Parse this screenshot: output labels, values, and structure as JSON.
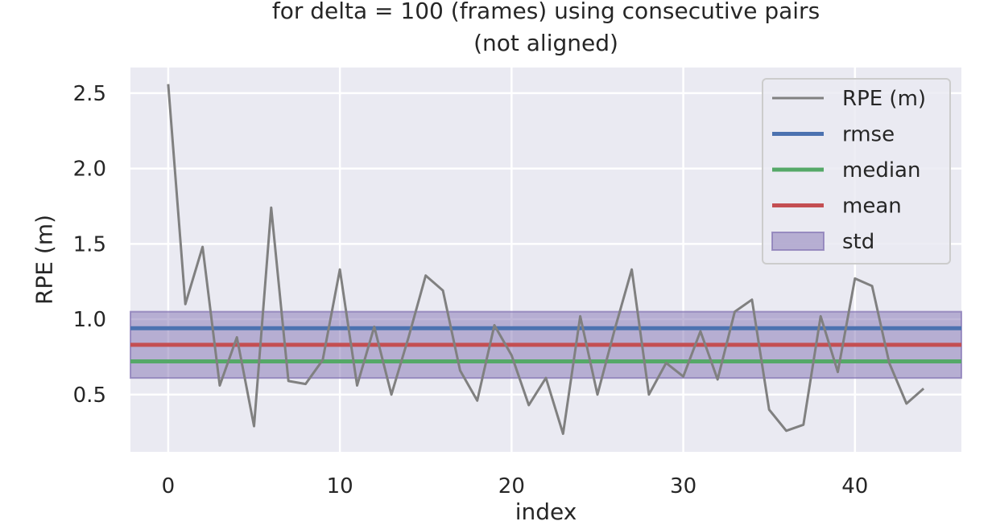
{
  "chart_data": {
    "type": "line",
    "title_lines": [
      "for delta = 100 (frames) using consecutive pairs",
      "(not aligned)"
    ],
    "xlabel": "index",
    "ylabel": "RPE (m)",
    "xlim": [
      -2.2,
      46.2
    ],
    "ylim": [
      0.12,
      2.67
    ],
    "xticks": [
      0,
      10,
      20,
      30,
      40
    ],
    "yticks": [
      0.5,
      1.0,
      1.5,
      2.0,
      2.5
    ],
    "ytick_labels": [
      "0.5",
      "1.0",
      "1.5",
      "2.0",
      "2.5"
    ],
    "grid": true,
    "legend_position": "top-right",
    "series": [
      {
        "name": "RPE (m)",
        "color": "#808080",
        "x": [
          0,
          1,
          2,
          3,
          4,
          5,
          6,
          7,
          8,
          9,
          10,
          11,
          12,
          13,
          14,
          15,
          16,
          17,
          18,
          19,
          20,
          21,
          22,
          23,
          24,
          25,
          26,
          27,
          28,
          29,
          30,
          31,
          32,
          33,
          34,
          35,
          36,
          37,
          38,
          39,
          40,
          41,
          42,
          43,
          44
        ],
        "values": [
          2.56,
          1.1,
          1.48,
          0.56,
          0.88,
          0.29,
          1.74,
          0.59,
          0.57,
          0.73,
          1.33,
          0.56,
          0.95,
          0.5,
          0.88,
          1.29,
          1.19,
          0.66,
          0.46,
          0.96,
          0.76,
          0.43,
          0.61,
          0.24,
          1.02,
          0.5,
          0.93,
          1.33,
          0.5,
          0.71,
          0.62,
          0.92,
          0.6,
          1.05,
          1.13,
          0.4,
          0.26,
          0.3,
          1.02,
          0.65,
          1.27,
          1.22,
          0.71,
          0.44,
          0.54
        ]
      }
    ],
    "stats": [
      {
        "name": "rmse",
        "value": 0.94,
        "color": "#4c72b0"
      },
      {
        "name": "median",
        "value": 0.72,
        "color": "#55a868"
      },
      {
        "name": "mean",
        "value": 0.83,
        "color": "#c44e52"
      }
    ],
    "std_band": {
      "name": "std",
      "low": 0.61,
      "high": 1.05,
      "color": "#8172b2"
    },
    "colors": {
      "background": "#eaeaf2",
      "grid": "#ffffff",
      "text": "#262626"
    }
  }
}
